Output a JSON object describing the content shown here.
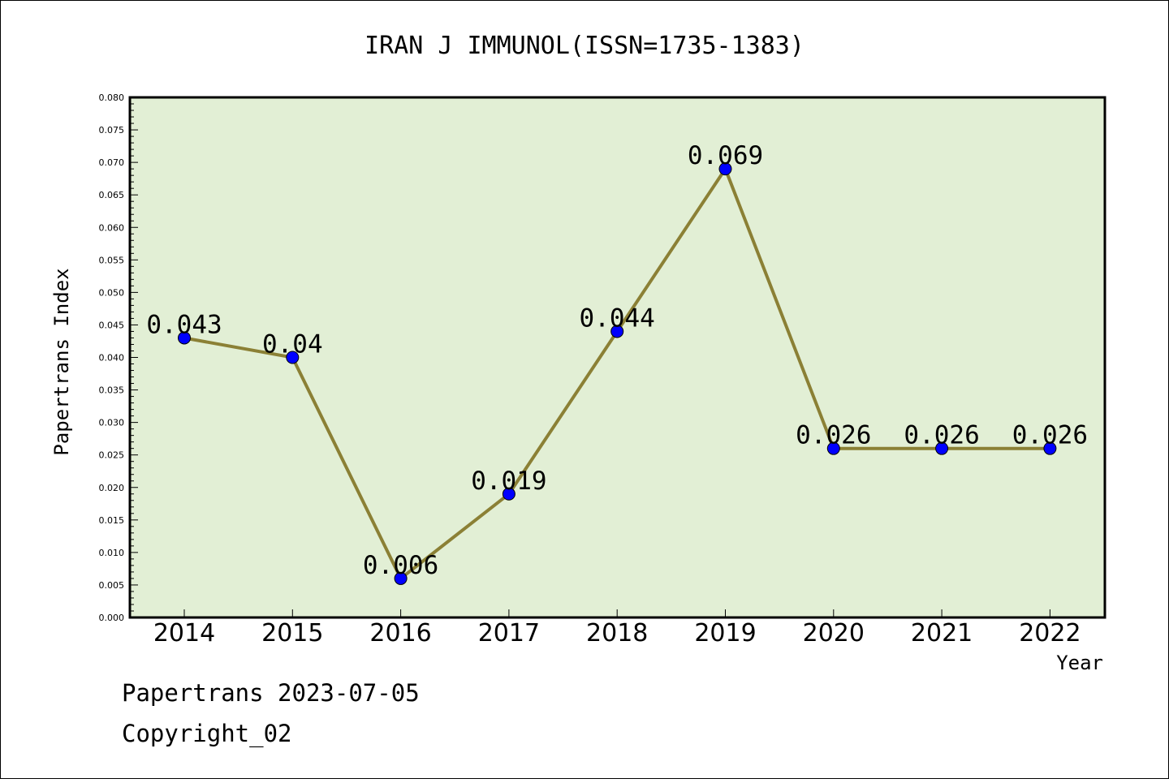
{
  "chart_data": {
    "type": "line",
    "title": "IRAN J IMMUNOL(ISSN=1735-1383)",
    "xlabel": "Year",
    "ylabel": "Papertrans Index",
    "categories": [
      "2014",
      "2015",
      "2016",
      "2017",
      "2018",
      "2019",
      "2020",
      "2021",
      "2022"
    ],
    "values": [
      0.043,
      0.04,
      0.006,
      0.019,
      0.044,
      0.069,
      0.026,
      0.026,
      0.026
    ],
    "data_labels": [
      "0.043",
      "0.04",
      "0.006",
      "0.019",
      "0.044",
      "0.069",
      "0.026",
      "0.026",
      "0.026"
    ],
    "ylim": [
      0,
      0.08
    ],
    "yticks": [
      "0.000",
      "0.005",
      "0.010",
      "0.015",
      "0.020",
      "0.025",
      "0.030",
      "0.035",
      "0.040",
      "0.045",
      "0.050",
      "0.055",
      "0.060",
      "0.065",
      "0.070",
      "0.075",
      "0.080"
    ],
    "grid": false,
    "legend": "none",
    "colors": {
      "plot_background": "#e2efd5",
      "line": "#8b8035",
      "marker": "#0000ff",
      "axis": "#000000"
    }
  },
  "footer": {
    "line1": "Papertrans 2023-07-05",
    "line2": "Copyright_02"
  }
}
